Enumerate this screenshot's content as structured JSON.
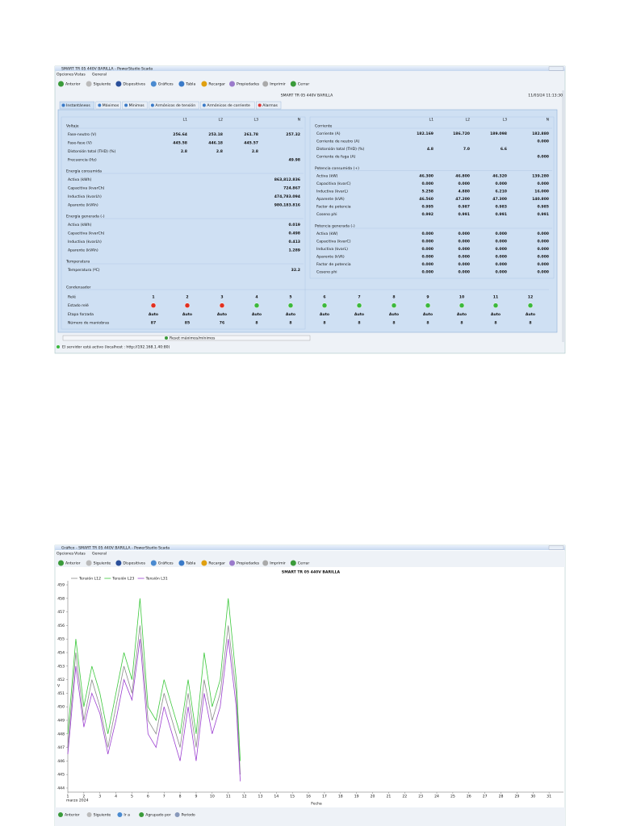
{
  "monitor": {
    "window_title": "SMART TR 05 440V BARILLA - PowerStudio Scada",
    "menu": [
      "Opciones",
      "Vistas",
      "General"
    ],
    "toolbar": [
      "Anterior",
      "Siguiente",
      "Dispositivos",
      "Gráficos",
      "Tabla",
      "Recargar",
      "Propiedades",
      "Imprimir",
      "Cerrar"
    ],
    "device": "SMART TR 05 440V BARILLA",
    "timestamp": "11/03/24 11:13:30",
    "tabs": [
      "Instantáneos",
      "Máximos",
      "Mínimos",
      "Armónicos de tensión",
      "Armónicos de corriente",
      "Alarmas"
    ],
    "left": {
      "columns": [
        "L1",
        "L2",
        "L3",
        "N"
      ],
      "sections": [
        {
          "title": "Voltaje",
          "rows": [
            {
              "label": "Fase-neutro (V)",
              "values": [
                "256.64",
                "253.18",
                "261.78",
                "257.32"
              ]
            },
            {
              "label": "Fase-fase (V)",
              "values": [
                "445.58",
                "446.18",
                "445.57"
              ]
            },
            {
              "label": "Distorsión total (THD) (%)",
              "values": [
                "2.8",
                "2.8",
                "2.8"
              ]
            },
            {
              "label": "Frecuencia (Hz)",
              "values": [
                "49.98"
              ]
            }
          ]
        },
        {
          "title": "Energía consumida",
          "rows": [
            {
              "label": "Activa (kWh)",
              "values": [
                "863,812.836"
              ]
            },
            {
              "label": "Capacitiva (kvarCh)",
              "values": [
                "724.867"
              ]
            },
            {
              "label": "Inductiva (kvarLh)",
              "values": [
                "474,783.094"
              ]
            },
            {
              "label": "Aparente (kVAh)",
              "values": [
                "980,183.816"
              ]
            }
          ]
        },
        {
          "title": "Energía generada (-)",
          "rows": [
            {
              "label": "Activa (kWh)",
              "values": [
                "0.019"
              ]
            },
            {
              "label": "Capacitiva (kvarCh)",
              "values": [
                "0.498"
              ]
            },
            {
              "label": "Inductiva (kvarLh)",
              "values": [
                "0.413"
              ]
            },
            {
              "label": "Aparente (kVAh)",
              "values": [
                "1.289"
              ]
            }
          ]
        },
        {
          "title": "Temperatura",
          "rows": [
            {
              "label": "Temperatura (ºC)",
              "values": [
                "32.2"
              ]
            }
          ]
        }
      ]
    },
    "right": {
      "columns": [
        "L1",
        "L2",
        "L3",
        "N"
      ],
      "sections": [
        {
          "title": "Corriente",
          "rows": [
            {
              "label": "Corriente (A)",
              "values": [
                "182.169",
                "186.720",
                "189.098",
                "182.880"
              ]
            },
            {
              "label": "Corriente de neutro (A)",
              "values": [
                "0.000"
              ]
            },
            {
              "label": "Distorsión total (THD) (%)",
              "values": [
                "4.8",
                "7.0",
                "6.6"
              ]
            },
            {
              "label": "Corriente de fuga (A)",
              "values": [
                "0.000"
              ]
            }
          ]
        },
        {
          "title": "Potencia consumida (+)",
          "rows": [
            {
              "label": "Activa (kW)",
              "values": [
                "46.300",
                "46.800",
                "46.320",
                "139.280"
              ]
            },
            {
              "label": "Capacitiva (kvarC)",
              "values": [
                "0.000",
                "0.000",
                "0.000",
                "0.000"
              ]
            },
            {
              "label": "Inductiva (kvarL)",
              "values": [
                "5.258",
                "4.880",
                "6.210",
                "16.000"
              ]
            },
            {
              "label": "Aparente (kVA)",
              "values": [
                "46.560",
                "47.200",
                "47.300",
                "140.800"
              ]
            },
            {
              "label": "Factor de potencia",
              "values": [
                "0.995",
                "0.987",
                "0.983",
                "0.985"
              ]
            },
            {
              "label": "Coseno phi",
              "values": [
                "0.992",
                "0.991",
                "0.991",
                "0.991"
              ]
            }
          ]
        },
        {
          "title": "Potencia generada (-)",
          "rows": [
            {
              "label": "Activa (kW)",
              "values": [
                "0.000",
                "0.000",
                "0.000",
                "0.000"
              ]
            },
            {
              "label": "Capacitiva (kvarC)",
              "values": [
                "0.000",
                "0.000",
                "0.000",
                "0.000"
              ]
            },
            {
              "label": "Inductiva (kvarL)",
              "values": [
                "0.000",
                "0.000",
                "0.000",
                "0.000"
              ]
            },
            {
              "label": "Aparente (kVA)",
              "values": [
                "0.000",
                "0.000",
                "0.000",
                "0.000"
              ]
            },
            {
              "label": "Factor de potencia",
              "values": [
                "0.000",
                "0.000",
                "0.000",
                "0.000"
              ]
            },
            {
              "label": "Coseno phi",
              "values": [
                "0.000",
                "0.000",
                "0.000",
                "0.000"
              ]
            }
          ]
        }
      ]
    },
    "condenser": {
      "title": "Condensador",
      "rows": [
        {
          "label": "Relé",
          "values": [
            "1",
            "2",
            "3",
            "4",
            "5",
            "6",
            "7",
            "8",
            "9",
            "10",
            "11",
            "12"
          ]
        },
        {
          "label": "Estado relé"
        },
        {
          "label": "Etapa forzada",
          "values": [
            "Auto",
            "Auto",
            "Auto",
            "Auto",
            "Auto",
            "Auto",
            "Auto",
            "Auto",
            "Auto",
            "Auto",
            "Auto",
            "Auto"
          ]
        },
        {
          "label": "Número de maniobras",
          "values": [
            "87",
            "85",
            "76",
            "8",
            "8",
            "8",
            "8",
            "8",
            "8",
            "8",
            "8",
            "8"
          ]
        }
      ]
    },
    "reset_button": "Reset máximos/mínimos",
    "status": "El servidor está activo (localhost : http://192.168.1.40:80)"
  },
  "graph": {
    "window_title": "Gráfico - SMART TR 05 440V BARILLA - PowerStudio Scada",
    "menu": [
      "Opciones",
      "Vistas",
      "General"
    ],
    "toolbar": [
      "Anterior",
      "Siguiente",
      "Dispositivos",
      "Gráficos",
      "Tabla",
      "Recargar",
      "Propiedades",
      "Imprimir",
      "Cerrar"
    ],
    "chart_data": {
      "type": "line",
      "title": "SMART TR 05 440V BARILLA",
      "xlabel": "Fecha",
      "xlabel_period": "marzo 2024",
      "ylabel": "V",
      "x": [
        1,
        1.5,
        2,
        2.5,
        3,
        3.5,
        4,
        4.5,
        5,
        5.5,
        6,
        6.5,
        7,
        7.5,
        8,
        8.5,
        9,
        9.5,
        10,
        10.5,
        11,
        11.5,
        11.75
      ],
      "series": [
        {
          "name": "Tensión L12",
          "color": "#8a8a8a",
          "values": [
            447,
            454,
            449,
            452,
            450,
            447,
            450,
            453,
            451,
            456,
            449,
            448,
            451,
            449,
            447,
            451,
            447,
            452,
            449,
            451,
            456,
            451,
            445
          ]
        },
        {
          "name": "Tensión L23",
          "color": "#3cc83c",
          "values": [
            448,
            455,
            450,
            453,
            451,
            448,
            451,
            454,
            452,
            458,
            450,
            449,
            452,
            450,
            448,
            452,
            448,
            454,
            450,
            452,
            458,
            452,
            446
          ]
        },
        {
          "name": "Tensión L31",
          "color": "#9b3fd0",
          "values": [
            446.5,
            453,
            448.5,
            451,
            449.5,
            446.5,
            449,
            452,
            450.5,
            455,
            448,
            447,
            450,
            448,
            446,
            450,
            446,
            451,
            448,
            450,
            455,
            450,
            444.5
          ]
        }
      ],
      "xlim": [
        1,
        31.9
      ],
      "xticks": [
        1,
        2,
        3,
        4,
        5,
        6,
        7,
        8,
        9,
        10,
        11,
        12,
        13,
        14,
        15,
        16,
        17,
        18,
        19,
        20,
        21,
        22,
        23,
        24,
        25,
        26,
        27,
        28,
        29,
        30,
        31
      ],
      "ylim": [
        443.7,
        459.3
      ],
      "yticks": [
        444,
        445,
        446,
        447,
        448,
        449,
        450,
        451,
        452,
        453,
        454,
        455,
        456,
        457,
        458,
        459
      ],
      "legend": "top-left"
    },
    "bottom_toolbar": [
      "Anterior",
      "Siguiente",
      "Ir a",
      "Agrupado por",
      "Período"
    ]
  }
}
